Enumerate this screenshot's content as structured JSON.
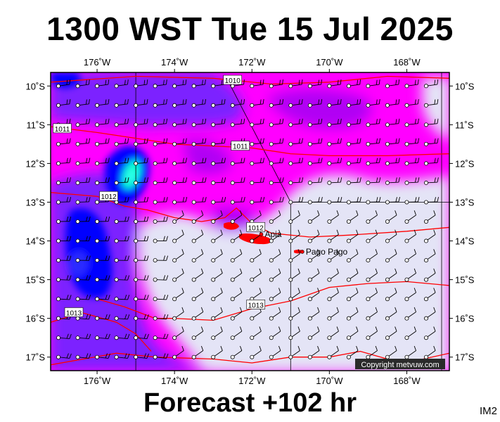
{
  "header": {
    "title": "1300 WST Tue 15 Jul 2025"
  },
  "footer": {
    "forecast": "Forecast +102 hr",
    "tag": "IM2"
  },
  "copyright": "Copyright metvuw.com",
  "map": {
    "lon_range": [
      -177.2,
      -166.9
    ],
    "lat_range": [
      -17.35,
      -9.65
    ],
    "lon_ticks": [
      {
        "value": -176,
        "label": "176˚W"
      },
      {
        "value": -174,
        "label": "174˚W"
      },
      {
        "value": -172,
        "label": "172˚W"
      },
      {
        "value": -170,
        "label": "170˚W"
      },
      {
        "value": -168,
        "label": "168˚W"
      }
    ],
    "lat_ticks": [
      {
        "value": -10,
        "label": "10˚S"
      },
      {
        "value": -11,
        "label": "11˚S"
      },
      {
        "value": -12,
        "label": "12˚S"
      },
      {
        "value": -13,
        "label": "13˚S"
      },
      {
        "value": -14,
        "label": "14˚S"
      },
      {
        "value": -15,
        "label": "15˚S"
      },
      {
        "value": -16,
        "label": "16˚S"
      },
      {
        "value": -17,
        "label": "17˚S"
      }
    ],
    "isobars": [
      {
        "label": "1010",
        "label_at": [
          -172.5,
          -9.85
        ],
        "points": [
          [
            -177.2,
            -9.9
          ],
          [
            -175,
            -9.75
          ],
          [
            -173,
            -9.8
          ],
          [
            -171.5,
            -9.95
          ],
          [
            -170,
            -9.9
          ],
          [
            -168.5,
            -9.75
          ],
          [
            -166.9,
            -9.8
          ]
        ]
      },
      {
        "label": "1011",
        "label_at": [
          -176.9,
          -11.1
        ],
        "points": [
          [
            -177.2,
            -11.05
          ],
          [
            -176,
            -11.2
          ],
          [
            -175,
            -11.35
          ],
          [
            -174,
            -11.5
          ],
          [
            -173,
            -11.55
          ],
          [
            -172,
            -11.6
          ],
          [
            -171,
            -11.75
          ],
          [
            -170,
            -11.8
          ],
          [
            -168.5,
            -11.8
          ],
          [
            -166.9,
            -11.75
          ]
        ]
      },
      {
        "label": "1011",
        "label_at": [
          -172.3,
          -11.55
        ],
        "points": []
      },
      {
        "label": "1012",
        "label_at": [
          -175.7,
          -12.85
        ],
        "points": [
          [
            -177.2,
            -12.75
          ],
          [
            -176,
            -12.85
          ],
          [
            -175.3,
            -13.1
          ],
          [
            -174.7,
            -13.2
          ],
          [
            -174,
            -13.4
          ],
          [
            -173.3,
            -13.5
          ],
          [
            -172.7,
            -13.4
          ],
          [
            -172.4,
            -13.15
          ],
          [
            -172,
            -13.55
          ],
          [
            -171.5,
            -13.8
          ],
          [
            -170.5,
            -13.9
          ],
          [
            -169.5,
            -13.85
          ],
          [
            -168,
            -13.75
          ],
          [
            -166.9,
            -13.65
          ]
        ]
      },
      {
        "label": "1012",
        "label_at": [
          -171.9,
          -13.65
        ],
        "points": []
      },
      {
        "label": "1013",
        "label_at": [
          -171.9,
          -15.65
        ],
        "points": [
          [
            -176,
            -15.5
          ],
          [
            -175.3,
            -15.7
          ],
          [
            -174.5,
            -16.0
          ],
          [
            -174,
            -16.0
          ],
          [
            -173,
            -16.05
          ],
          [
            -172,
            -15.75
          ],
          [
            -171,
            -15.55
          ],
          [
            -170,
            -15.2
          ],
          [
            -169,
            -15.1
          ],
          [
            -168,
            -15.05
          ],
          [
            -166.9,
            -15.15
          ]
        ]
      },
      {
        "label": "1013",
        "label_at": [
          -176.6,
          -15.85
        ],
        "points": [
          [
            -177.2,
            -16.1
          ],
          [
            -176.4,
            -15.85
          ],
          [
            -175.5,
            -16.1
          ],
          [
            -175.0,
            -16.4
          ],
          [
            -174.6,
            -16.85
          ]
        ]
      },
      {
        "label": "",
        "label_at": null,
        "points": [
          [
            -177.2,
            -17.2
          ],
          [
            -175.5,
            -16.9
          ],
          [
            -174.5,
            -17.0
          ],
          [
            -173,
            -17.05
          ],
          [
            -172,
            -17.15
          ],
          [
            -171,
            -17.0
          ],
          [
            -170,
            -17.0
          ],
          [
            -169.2,
            -16.85
          ],
          [
            -168.5,
            -17.05
          ],
          [
            -167.8,
            -17.1
          ],
          [
            -166.9,
            -16.9
          ]
        ]
      }
    ],
    "places": [
      {
        "name": "Apia",
        "lon": -171.76,
        "lat": -13.83
      },
      {
        "name": "Pago Pago",
        "lon": -170.7,
        "lat": -14.28
      }
    ],
    "colors": {
      "land": "#e4e4f6",
      "fill_low": "#ff00ff",
      "fill_mid": "#b100f4",
      "fill_high": "#7b22ff",
      "fill_strong": "#0000ff",
      "fill_peak": "#00ffcc",
      "isobar": "#ff0000",
      "barb": "#000000"
    }
  }
}
